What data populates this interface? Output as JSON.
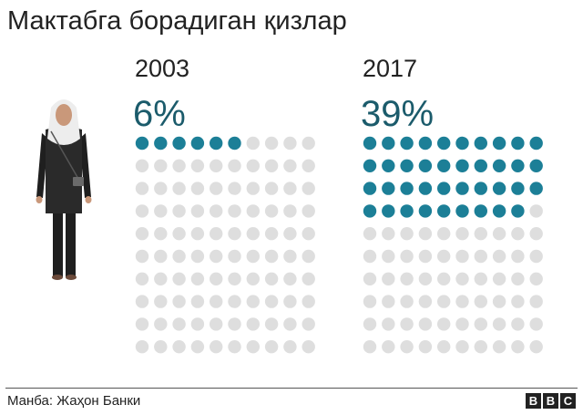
{
  "title": "Мактабга борадиган қизлар",
  "source": "Манба: Жаҳон Банки",
  "logo_letters": [
    "B",
    "B",
    "C"
  ],
  "colors": {
    "filled": "#1c7f97",
    "empty": "#dedede",
    "percent_text": "#1b5b6b"
  },
  "chart_data": {
    "type": "waffle",
    "title": "Мактабга борадиган қизлар",
    "units_per_panel": 100,
    "grid": "10x10",
    "panels": [
      {
        "year_label": "2003",
        "percent_label": "6%",
        "value": 6
      },
      {
        "year_label": "2017",
        "percent_label": "39%",
        "value": 39
      }
    ]
  }
}
